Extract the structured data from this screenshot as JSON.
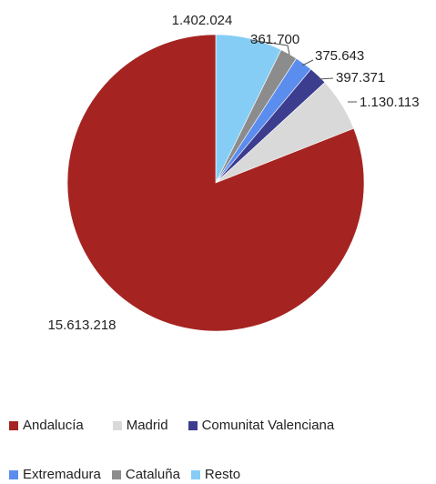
{
  "chart_data": {
    "type": "pie",
    "categories": [
      "Andalucía",
      "Madrid",
      "Comunitat Valenciana",
      "Extremadura",
      "Cataluña",
      "Resto"
    ],
    "values": [
      15613218,
      1130113,
      397371,
      375643,
      361700,
      1402024
    ],
    "value_labels": [
      "15.613.218",
      "1.130.113",
      "397.371",
      "375.643",
      "361.700",
      "1.402.024"
    ],
    "colors": [
      "#a52421",
      "#d9d9d9",
      "#3d3d8f",
      "#5b8def",
      "#8c8c8c",
      "#86cdf5"
    ],
    "legend_placement": "bottom",
    "title": ""
  },
  "legend": {
    "row1": [
      "Andalucía",
      "Madrid",
      "Comunitat Valenciana"
    ],
    "row2": [
      "Extremadura",
      "Cataluña",
      "Resto"
    ]
  }
}
